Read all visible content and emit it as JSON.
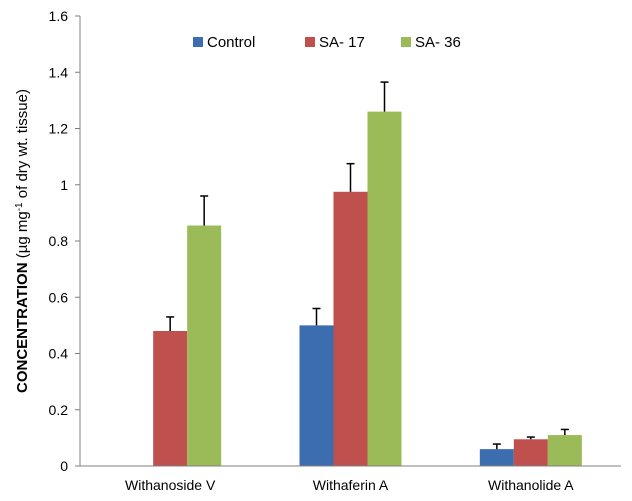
{
  "chart_data": {
    "type": "bar",
    "title": "",
    "xlabel": "",
    "ylabel": {
      "bold": "CONCENTRATION",
      "open": " (µg mg",
      "sup": "-1",
      "close": " of dry wt. tissue)"
    },
    "ylim": [
      0,
      1.6
    ],
    "yticks": [
      "0",
      "0.2",
      "0.4",
      "0.6",
      "0.8",
      "1",
      "1.2",
      "1.4",
      "1.6"
    ],
    "categories": [
      "Withanoside V",
      "Withaferin A",
      "Withanolide A"
    ],
    "series": [
      {
        "name": "Control",
        "color": "#3C6EAF",
        "values": [
          0,
          0.5,
          0.06
        ],
        "errors": [
          0,
          0.06,
          0.018
        ]
      },
      {
        "name": "SA- 17",
        "color": "#C0504D",
        "values": [
          0.48,
          0.975,
          0.095
        ],
        "errors": [
          0.05,
          0.1,
          0.008
        ]
      },
      {
        "name": "SA- 36",
        "color": "#9BBB59",
        "values": [
          0.855,
          1.26,
          0.11
        ],
        "errors": [
          0.105,
          0.105,
          0.02
        ]
      }
    ],
    "grid": false,
    "legend_position": "top-right"
  }
}
